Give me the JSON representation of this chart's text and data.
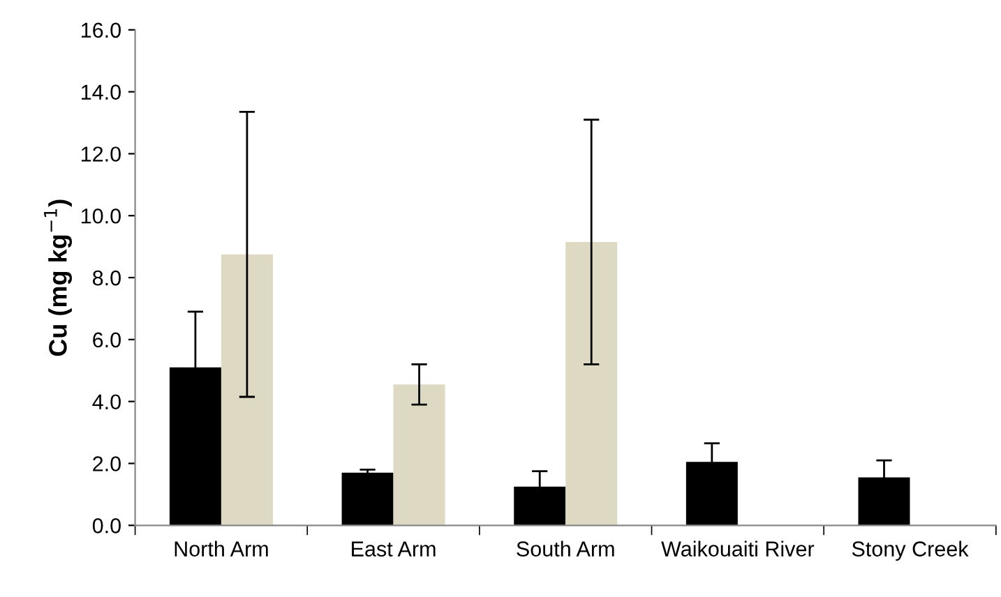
{
  "chart_data": {
    "type": "bar",
    "ylabel": "Cu (mg kg$^{−1}$)",
    "categories": [
      "North Arm",
      "East Arm",
      "South Arm",
      "Waikouaiti River",
      "Stony Creek"
    ],
    "series": [
      {
        "color": "#000000",
        "values": [
          5.1,
          1.7,
          1.25,
          2.05,
          1.55
        ],
        "errors": [
          1.8,
          0.1,
          0.5,
          0.6,
          0.55
        ]
      },
      {
        "color": "#ddd9c3",
        "values": [
          8.75,
          4.55,
          9.15,
          null,
          null
        ],
        "errors": [
          4.6,
          0.65,
          3.95,
          null,
          null
        ]
      }
    ],
    "ylim": [
      0,
      16
    ],
    "yticks": [
      {
        "value": 0,
        "label": "0.0"
      },
      {
        "value": 2,
        "label": "2.0"
      },
      {
        "value": 4,
        "label": "4.0"
      },
      {
        "value": 6,
        "label": "6.0"
      },
      {
        "value": 8,
        "label": "8.0"
      },
      {
        "value": 10,
        "label": "10.0"
      },
      {
        "value": 12,
        "label": "12.0"
      },
      {
        "value": 14,
        "label": "14.0"
      },
      {
        "value": 16,
        "label": "16.0"
      }
    ],
    "grid": false,
    "legend": false
  }
}
